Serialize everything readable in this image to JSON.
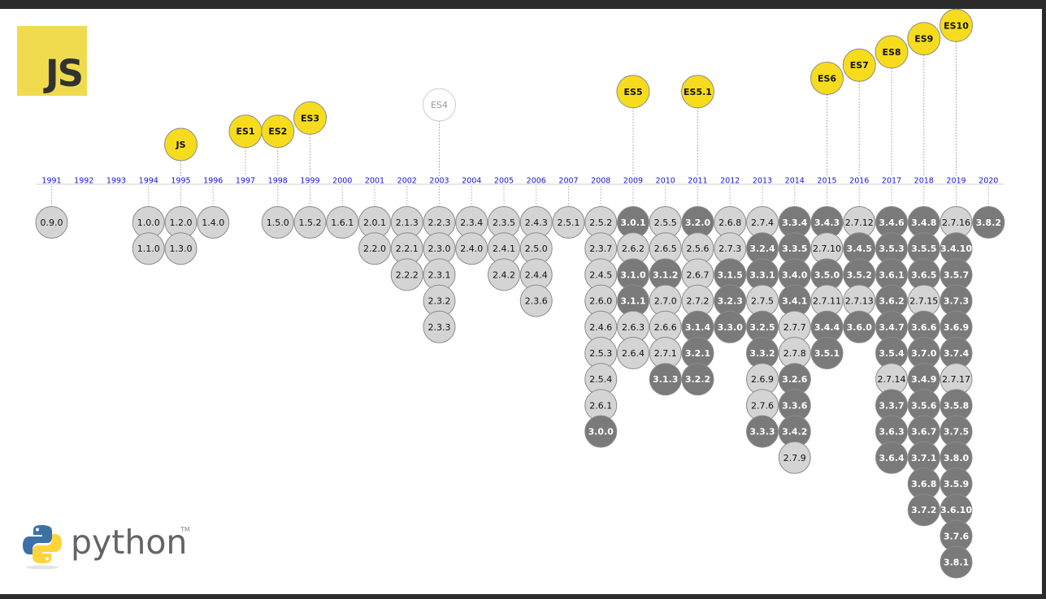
{
  "logos": {
    "js_text": "JS",
    "python_text": "python",
    "python_tm": "TM"
  },
  "colors": {
    "yellow": "#f6dc1c",
    "light": "#d4d4d4",
    "dark": "#7a7a7a",
    "outline": "#8c8c8c",
    "year_text": "#1515d8"
  },
  "years": [
    "1991",
    "1992",
    "1993",
    "1994",
    "1995",
    "1996",
    "1997",
    "1998",
    "1999",
    "2000",
    "2001",
    "2002",
    "2003",
    "2004",
    "2005",
    "2006",
    "2007",
    "2008",
    "2009",
    "2010",
    "2011",
    "2012",
    "2013",
    "2014",
    "2015",
    "2016",
    "2017",
    "2018",
    "2019",
    "2020"
  ],
  "js_releases": [
    {
      "label": "JS",
      "year": "1995",
      "level": 1
    },
    {
      "label": "ES1",
      "year": "1997",
      "level": 2
    },
    {
      "label": "ES2",
      "year": "1998",
      "level": 2
    },
    {
      "label": "ES3",
      "year": "1999",
      "level": 3
    },
    {
      "label": "ES4",
      "year": "2003",
      "level": 4,
      "abandoned": true
    },
    {
      "label": "ES5",
      "year": "2009",
      "level": 5
    },
    {
      "label": "ES5.1",
      "year": "2011",
      "level": 5
    },
    {
      "label": "ES6",
      "year": "2015",
      "level": 6
    },
    {
      "label": "ES7",
      "year": "2016",
      "level": 7
    },
    {
      "label": "ES8",
      "year": "2017",
      "level": 8
    },
    {
      "label": "ES9",
      "year": "2018",
      "level": 9
    },
    {
      "label": "ES10",
      "year": "2019",
      "level": 10
    }
  ],
  "python_columns": [
    {
      "year": "1991",
      "versions": [
        [
          "0.9.0",
          "l"
        ]
      ]
    },
    {
      "year": "1994",
      "versions": [
        [
          "1.0.0",
          "l"
        ],
        [
          "1.1.0",
          "l"
        ]
      ]
    },
    {
      "year": "1995",
      "versions": [
        [
          "1.2.0",
          "l"
        ],
        [
          "1.3.0",
          "l"
        ]
      ]
    },
    {
      "year": "1996",
      "versions": [
        [
          "1.4.0",
          "l"
        ]
      ]
    },
    {
      "year": "1998",
      "versions": [
        [
          "1.5.0",
          "l"
        ]
      ]
    },
    {
      "year": "1999",
      "versions": [
        [
          "1.5.2",
          "l"
        ]
      ]
    },
    {
      "year": "2000",
      "versions": [
        [
          "1.6.1",
          "l"
        ]
      ]
    },
    {
      "year": "2001",
      "versions": [
        [
          "2.0.1",
          "l"
        ],
        [
          "2.2.0",
          "l"
        ]
      ]
    },
    {
      "year": "2002",
      "versions": [
        [
          "2.1.3",
          "l"
        ],
        [
          "2.2.1",
          "l"
        ],
        [
          "2.2.2",
          "l"
        ]
      ]
    },
    {
      "year": "2003",
      "versions": [
        [
          "2.2.3",
          "l"
        ],
        [
          "2.3.0",
          "l"
        ],
        [
          "2.3.1",
          "l"
        ],
        [
          "2.3.2",
          "l"
        ],
        [
          "2.3.3",
          "l"
        ]
      ]
    },
    {
      "year": "2004",
      "versions": [
        [
          "2.3.4",
          "l"
        ],
        [
          "2.4.0",
          "l"
        ]
      ]
    },
    {
      "year": "2005",
      "versions": [
        [
          "2.3.5",
          "l"
        ],
        [
          "2.4.1",
          "l"
        ],
        [
          "2.4.2",
          "l"
        ]
      ]
    },
    {
      "year": "2006",
      "versions": [
        [
          "2.4.3",
          "l"
        ],
        [
          "2.5.0",
          "l"
        ],
        [
          "2.4.4",
          "l"
        ],
        [
          "2.3.6",
          "l"
        ]
      ]
    },
    {
      "year": "2007",
      "versions": [
        [
          "2.5.1",
          "l"
        ]
      ]
    },
    {
      "year": "2008",
      "versions": [
        [
          "2.5.2",
          "l"
        ],
        [
          "2.3.7",
          "l"
        ],
        [
          "2.4.5",
          "l"
        ],
        [
          "2.6.0",
          "l"
        ],
        [
          "2.4.6",
          "l"
        ],
        [
          "2.5.3",
          "l"
        ],
        [
          "2.5.4",
          "l"
        ],
        [
          "2.6.1",
          "l"
        ],
        [
          "3.0.0",
          "d"
        ]
      ]
    },
    {
      "year": "2009",
      "versions": [
        [
          "3.0.1",
          "d"
        ],
        [
          "2.6.2",
          "l"
        ],
        [
          "3.1.0",
          "d"
        ],
        [
          "3.1.1",
          "d"
        ],
        [
          "2.6.3",
          "l"
        ],
        [
          "2.6.4",
          "l"
        ]
      ]
    },
    {
      "year": "2010",
      "versions": [
        [
          "2.5.5",
          "l"
        ],
        [
          "2.6.5",
          "l"
        ],
        [
          "3.1.2",
          "d"
        ],
        [
          "2.7.0",
          "l"
        ],
        [
          "2.6.6",
          "l"
        ],
        [
          "2.7.1",
          "l"
        ],
        [
          "3.1.3",
          "d"
        ]
      ]
    },
    {
      "year": "2011",
      "versions": [
        [
          "3.2.0",
          "d"
        ],
        [
          "2.5.6",
          "l"
        ],
        [
          "2.6.7",
          "l"
        ],
        [
          "2.7.2",
          "l"
        ],
        [
          "3.1.4",
          "d"
        ],
        [
          "3.2.1",
          "d"
        ],
        [
          "3.2.2",
          "d"
        ]
      ]
    },
    {
      "year": "2012",
      "versions": [
        [
          "2.6.8",
          "l"
        ],
        [
          "2.7.3",
          "l"
        ],
        [
          "3.1.5",
          "d"
        ],
        [
          "3.2.3",
          "d"
        ],
        [
          "3.3.0",
          "d"
        ]
      ]
    },
    {
      "year": "2013",
      "versions": [
        [
          "2.7.4",
          "l"
        ],
        [
          "3.2.4",
          "d"
        ],
        [
          "3.3.1",
          "d"
        ],
        [
          "2.7.5",
          "l"
        ],
        [
          "3.2.5",
          "d"
        ],
        [
          "3.3.2",
          "d"
        ],
        [
          "2.6.9",
          "l"
        ],
        [
          "2.7.6",
          "l"
        ],
        [
          "3.3.3",
          "d"
        ]
      ]
    },
    {
      "year": "2014",
      "versions": [
        [
          "3.3.4",
          "d"
        ],
        [
          "3.3.5",
          "d"
        ],
        [
          "3.4.0",
          "d"
        ],
        [
          "3.4.1",
          "d"
        ],
        [
          "2.7.7",
          "l"
        ],
        [
          "2.7.8",
          "l"
        ],
        [
          "3.2.6",
          "d"
        ],
        [
          "3.3.6",
          "d"
        ],
        [
          "3.4.2",
          "d"
        ],
        [
          "2.7.9",
          "l"
        ]
      ]
    },
    {
      "year": "2015",
      "versions": [
        [
          "3.4.3",
          "d"
        ],
        [
          "2.7.10",
          "l"
        ],
        [
          "3.5.0",
          "d"
        ],
        [
          "2.7.11",
          "l"
        ],
        [
          "3.4.4",
          "d"
        ],
        [
          "3.5.1",
          "d"
        ]
      ]
    },
    {
      "year": "2016",
      "versions": [
        [
          "2.7.12",
          "l"
        ],
        [
          "3.4.5",
          "d"
        ],
        [
          "3.5.2",
          "d"
        ],
        [
          "2.7.13",
          "l"
        ],
        [
          "3.6.0",
          "d"
        ]
      ]
    },
    {
      "year": "2017",
      "versions": [
        [
          "3.4.6",
          "d"
        ],
        [
          "3.5.3",
          "d"
        ],
        [
          "3.6.1",
          "d"
        ],
        [
          "3.6.2",
          "d"
        ],
        [
          "3.4.7",
          "d"
        ],
        [
          "3.5.4",
          "d"
        ],
        [
          "2.7.14",
          "l"
        ],
        [
          "3.3.7",
          "d"
        ],
        [
          "3.6.3",
          "d"
        ],
        [
          "3.6.4",
          "d"
        ]
      ]
    },
    {
      "year": "2018",
      "versions": [
        [
          "3.4.8",
          "d"
        ],
        [
          "3.5.5",
          "d"
        ],
        [
          "3.6.5",
          "d"
        ],
        [
          "2.7.15",
          "l"
        ],
        [
          "3.6.6",
          "d"
        ],
        [
          "3.7.0",
          "d"
        ],
        [
          "3.4.9",
          "d"
        ],
        [
          "3.5.6",
          "d"
        ],
        [
          "3.6.7",
          "d"
        ],
        [
          "3.7.1",
          "d"
        ],
        [
          "3.6.8",
          "d"
        ],
        [
          "3.7.2",
          "d"
        ]
      ]
    },
    {
      "year": "2019",
      "versions": [
        [
          "2.7.16",
          "l"
        ],
        [
          "3.4.10",
          "d"
        ],
        [
          "3.5.7",
          "d"
        ],
        [
          "3.7.3",
          "d"
        ],
        [
          "3.6.9",
          "d"
        ],
        [
          "3.7.4",
          "d"
        ],
        [
          "2.7.17",
          "l"
        ],
        [
          "3.5.8",
          "d"
        ],
        [
          "3.7.5",
          "d"
        ],
        [
          "3.8.0",
          "d"
        ],
        [
          "3.5.9",
          "d"
        ],
        [
          "3.6.10",
          "d"
        ],
        [
          "3.7.6",
          "d"
        ],
        [
          "3.8.1",
          "d"
        ]
      ]
    },
    {
      "year": "2020",
      "versions": [
        [
          "3.8.2",
          "d"
        ]
      ]
    }
  ]
}
